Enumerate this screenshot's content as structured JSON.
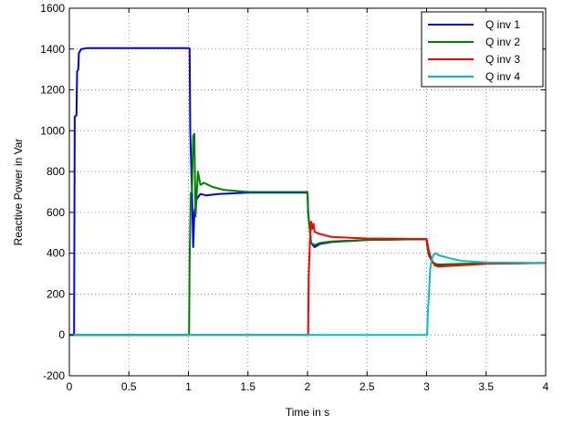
{
  "chart_data": {
    "type": "line",
    "xlabel": "Time in s",
    "ylabel": "Reactive Power in Var",
    "xlim": [
      0,
      4
    ],
    "ylim": [
      -200,
      1600
    ],
    "x_ticks": [
      "0",
      "0.5",
      "1",
      "1.5",
      "2",
      "2.5",
      "3",
      "3.5",
      "4"
    ],
    "y_ticks": [
      "-200",
      "0",
      "200",
      "400",
      "600",
      "800",
      "1000",
      "1200",
      "1400",
      "1600"
    ],
    "x_tick_values": [
      0,
      0.5,
      1,
      1.5,
      2,
      2.5,
      3,
      3.5,
      4
    ],
    "y_tick_values": [
      -200,
      0,
      200,
      400,
      600,
      800,
      1000,
      1200,
      1400,
      1600
    ],
    "grid": true,
    "legend_position": "top-right",
    "series": [
      {
        "name": "Q inv 1",
        "color": "#0000ff",
        "points": [
          [
            0,
            0
          ],
          [
            0.04,
            0
          ],
          [
            0.045,
            1070
          ],
          [
            0.06,
            1075
          ],
          [
            0.065,
            1290
          ],
          [
            0.075,
            1300
          ],
          [
            0.08,
            1380
          ],
          [
            0.1,
            1400
          ],
          [
            0.15,
            1405
          ],
          [
            0.5,
            1405
          ],
          [
            1.0,
            1405
          ],
          [
            1.01,
            1402
          ],
          [
            1.015,
            1000
          ],
          [
            1.02,
            900
          ],
          [
            1.03,
            700
          ],
          [
            1.04,
            430
          ],
          [
            1.05,
            600
          ],
          [
            1.07,
            665
          ],
          [
            1.1,
            690
          ],
          [
            1.15,
            683
          ],
          [
            1.25,
            690
          ],
          [
            1.5,
            697
          ],
          [
            2.0,
            697
          ],
          [
            2.005,
            600
          ],
          [
            2.015,
            540
          ],
          [
            2.03,
            450
          ],
          [
            2.06,
            430
          ],
          [
            2.1,
            445
          ],
          [
            2.2,
            455
          ],
          [
            2.5,
            465
          ],
          [
            2.9,
            468
          ],
          [
            3.0,
            468
          ],
          [
            3.01,
            420
          ],
          [
            3.02,
            390
          ],
          [
            3.05,
            355
          ],
          [
            3.1,
            340
          ],
          [
            3.2,
            345
          ],
          [
            3.5,
            350
          ],
          [
            4.0,
            352
          ]
        ]
      },
      {
        "name": "Q inv 2",
        "color": "#008000",
        "points": [
          [
            0,
            0
          ],
          [
            1.0,
            0
          ],
          [
            1.005,
            0
          ],
          [
            1.01,
            360
          ],
          [
            1.02,
            695
          ],
          [
            1.03,
            700
          ],
          [
            1.04,
            975
          ],
          [
            1.05,
            985
          ],
          [
            1.06,
            580
          ],
          [
            1.08,
            800
          ],
          [
            1.1,
            735
          ],
          [
            1.13,
            745
          ],
          [
            1.2,
            725
          ],
          [
            1.3,
            710
          ],
          [
            1.5,
            700
          ],
          [
            2.0,
            700
          ],
          [
            2.005,
            600
          ],
          [
            2.015,
            540
          ],
          [
            2.03,
            450
          ],
          [
            2.06,
            440
          ],
          [
            2.1,
            450
          ],
          [
            2.2,
            458
          ],
          [
            2.5,
            465
          ],
          [
            2.9,
            468
          ],
          [
            3.0,
            468
          ],
          [
            3.01,
            420
          ],
          [
            3.03,
            380
          ],
          [
            3.06,
            350
          ],
          [
            3.1,
            345
          ],
          [
            3.3,
            348
          ],
          [
            3.5,
            350
          ],
          [
            4.0,
            352
          ]
        ]
      },
      {
        "name": "Q inv 3",
        "color": "#ff0000",
        "points": [
          [
            0,
            0
          ],
          [
            2.0,
            0
          ],
          [
            2.005,
            0
          ],
          [
            2.01,
            285
          ],
          [
            2.02,
            450
          ],
          [
            2.03,
            555
          ],
          [
            2.04,
            520
          ],
          [
            2.05,
            545
          ],
          [
            2.06,
            505
          ],
          [
            2.1,
            495
          ],
          [
            2.2,
            480
          ],
          [
            2.5,
            472
          ],
          [
            2.9,
            470
          ],
          [
            3.0,
            470
          ],
          [
            3.01,
            440
          ],
          [
            3.02,
            410
          ],
          [
            3.04,
            370
          ],
          [
            3.07,
            340
          ],
          [
            3.1,
            335
          ],
          [
            3.2,
            338
          ],
          [
            3.5,
            348
          ],
          [
            4.0,
            352
          ]
        ]
      },
      {
        "name": "Q inv 4",
        "color": "#00bfbf",
        "points": [
          [
            0,
            0
          ],
          [
            3.0,
            0
          ],
          [
            3.005,
            0
          ],
          [
            3.01,
            100
          ],
          [
            3.02,
            200
          ],
          [
            3.03,
            320
          ],
          [
            3.04,
            360
          ],
          [
            3.05,
            380
          ],
          [
            3.06,
            395
          ],
          [
            3.08,
            400
          ],
          [
            3.1,
            390
          ],
          [
            3.2,
            375
          ],
          [
            3.3,
            362
          ],
          [
            3.5,
            355
          ],
          [
            4.0,
            352
          ]
        ]
      }
    ]
  }
}
